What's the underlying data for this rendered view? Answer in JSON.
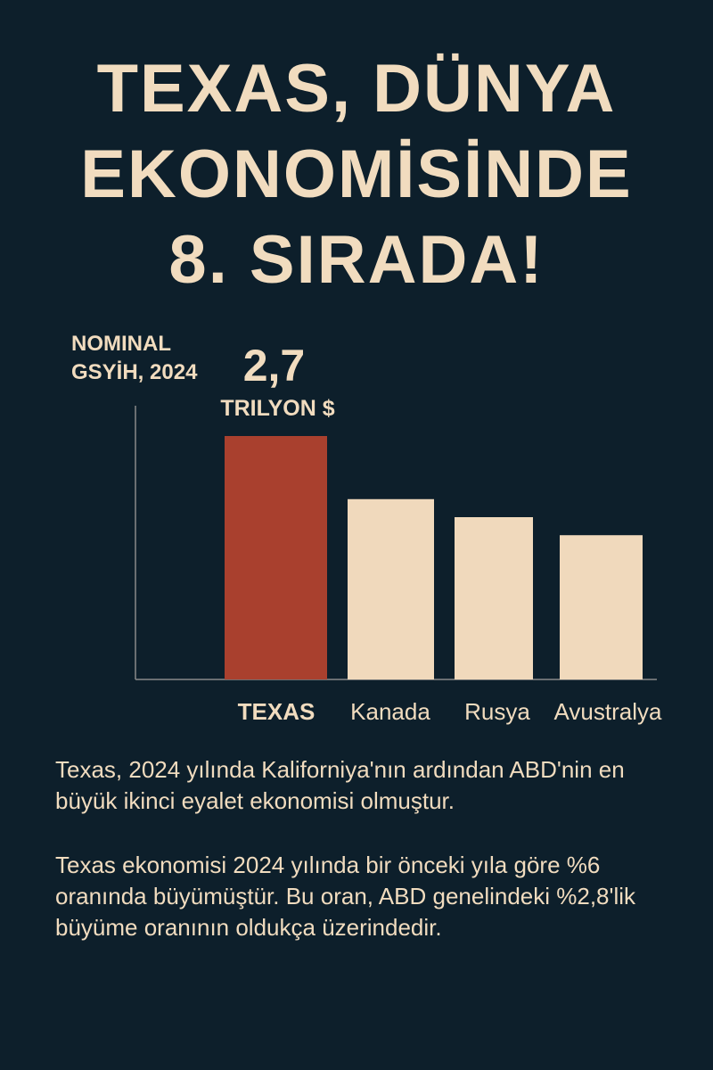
{
  "headline": {
    "line1": "TEXAS, DÜNYA",
    "line2": "EKONOMİSİNDE",
    "line3": "8. SIRADA!"
  },
  "colors": {
    "background": "#0d1f2b",
    "text": "#f1dcbf",
    "highlight_bar": "#a9402e",
    "other_bars": "#f0d9bc",
    "axis": "#8a8a8a"
  },
  "chart_data": {
    "type": "bar",
    "ylabel_line1": "NOMINAL",
    "ylabel_line2": "GSYİH, 2024",
    "categories": [
      "TEXAS",
      "Kanada",
      "Rusya",
      "Avustralya"
    ],
    "values": [
      2.7,
      2.0,
      1.8,
      1.6
    ],
    "highlight_index": 0,
    "highlight_value_label": "2,7",
    "highlight_unit_label": "TRILYON $",
    "ylim": [
      0,
      2.7
    ],
    "grid": false
  },
  "paragraphs": [
    "Texas, 2024 yılında Kaliforniya'nın ardından ABD'nin en büyük ikinci eyalet ekonomisi olmuştur.",
    "Texas ekonomisi 2024 yılında bir önceki yıla göre %6 oranında büyümüştür. Bu oran, ABD genelindeki %2,8'lik büyüme oranının oldukça üzerindedir."
  ]
}
